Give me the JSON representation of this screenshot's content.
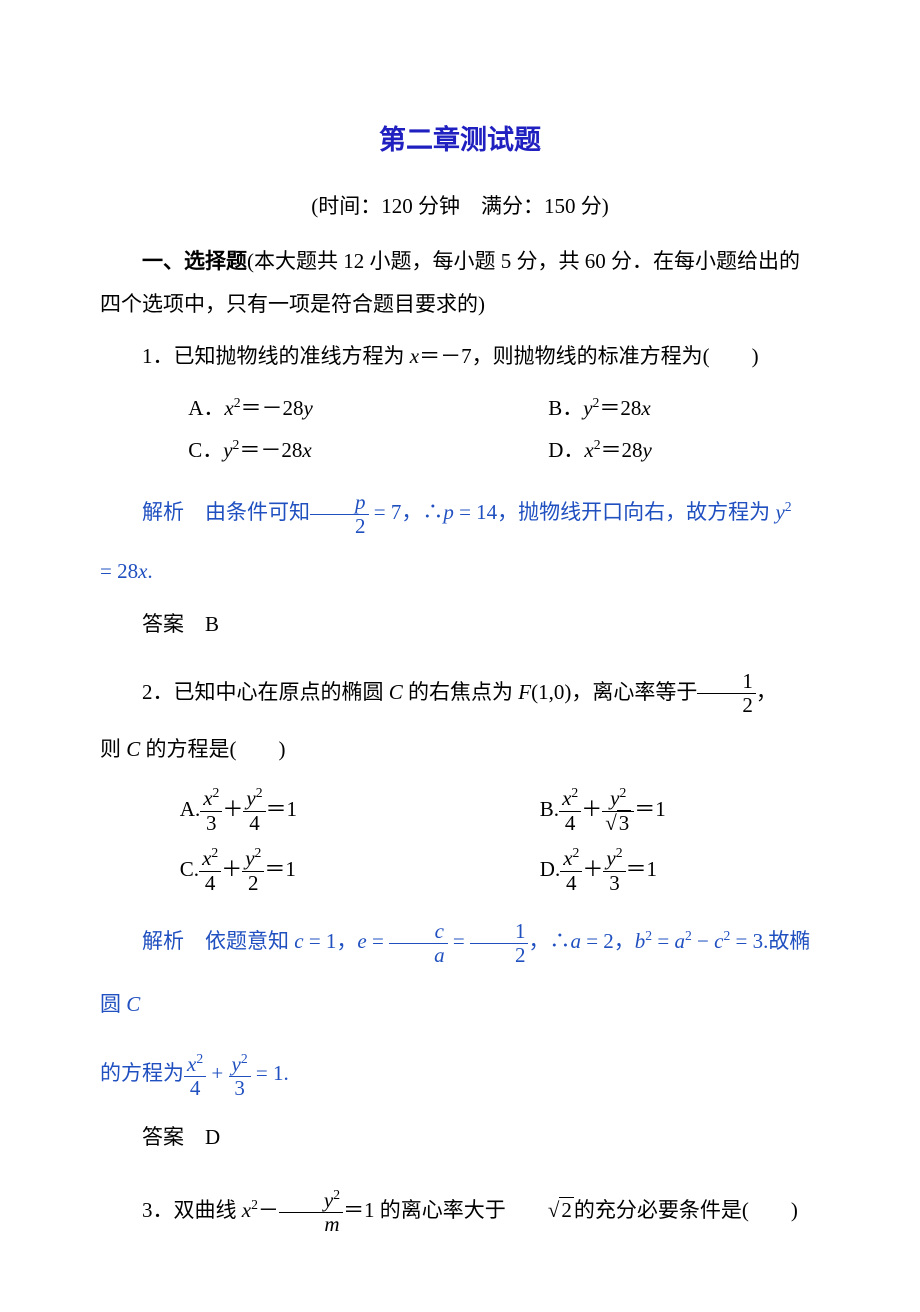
{
  "title": "第二章测试题",
  "timeInfo": "(时间：120 分钟　满分：150 分)",
  "sectionTitle": {
    "prefix": "一、选择题",
    "rest": "(本大题共 12 小题，每小题 5 分，共 60 分．在每小题给出的四个选项中，只有一项是符合题目要求的)"
  },
  "q1": {
    "text": "1．已知抛物线的准线方程为 ",
    "var": "x",
    "eq": "＝－7，则抛物线的标准方程为(　　)",
    "optA_prefix": "A．",
    "optA_var1": "x",
    "optA_pow": "2",
    "optA_mid": "＝－28",
    "optA_var2": "y",
    "optB_prefix": "B．",
    "optB_var1": "y",
    "optB_pow": "2",
    "optB_mid": "＝28",
    "optB_var2": "x",
    "optC_prefix": "C．",
    "optC_var1": "y",
    "optC_pow": "2",
    "optC_mid": "＝－28",
    "optC_var2": "x",
    "optD_prefix": "D．",
    "optD_var1": "x",
    "optD_pow": "2",
    "optD_mid": "＝28",
    "optD_var2": "y",
    "analysisLabel": "解析",
    "a1": "　由条件可知",
    "fnum": "p",
    "fden": "2",
    "a2": " = 7，∴",
    "a3": "p",
    "a4": " = 14，抛物线开口向右，故方程为 ",
    "a5": "y",
    "a6": "2",
    "aCont": "= 28",
    "aCont2": "x",
    "aCont3": ".",
    "answerLabel": "答案",
    "answerValue": "　B"
  },
  "q2": {
    "text": "2．已知中心在原点的椭圆 ",
    "var1": "C",
    "mid": " 的右焦点为 ",
    "var2": "F",
    "fp": "(1,0)，离心率等于",
    "fnum": "1",
    "fden": "2",
    "comma": "，",
    "cont": "则 ",
    "contVar": "C",
    "cont2": " 的方程是(　　)",
    "optA": {
      "prefix": "A.",
      "d1": "3",
      "d2": "4"
    },
    "optB": {
      "prefix": "B.",
      "d1": "4",
      "d2s": "3"
    },
    "optC": {
      "prefix": "C.",
      "d1": "4",
      "d2": "2"
    },
    "optD": {
      "prefix": "D.",
      "d1": "4",
      "d2": "3"
    },
    "analysisLabel": "解析",
    "a1": "　依题意知 ",
    "a2": "c",
    "a3": " = 1，",
    "a4": "e",
    "a5": " = ",
    "ef1n": "c",
    "ef1d": "a",
    "a6": " = ",
    "ef2n": "1",
    "ef2d": "2",
    "a7": "，∴",
    "a8": "a",
    "a9": " = 2，",
    "a10": "b",
    "a11": "2",
    "a12": " = ",
    "a13": "a",
    "a14": "2",
    "a15": " − ",
    "a16": "c",
    "a17": "2",
    "a18": " = 3.故椭圆 ",
    "a19": "C",
    "c1": "的方程为",
    "cf1d": "4",
    "cf2d": "3",
    "c2": " = 1.",
    "answerLabel": "答案",
    "answerValue": "　D"
  },
  "q3": {
    "text": "3．双曲线 ",
    "v1": "x",
    "p1": "2",
    "minus": "－",
    "fnum_v": "y",
    "fnum_p": "2",
    "fden": "m",
    "mid": "＝1 的离心率大于",
    "sqrtv": "2",
    "tail": "的充分必要条件是(　　)"
  }
}
